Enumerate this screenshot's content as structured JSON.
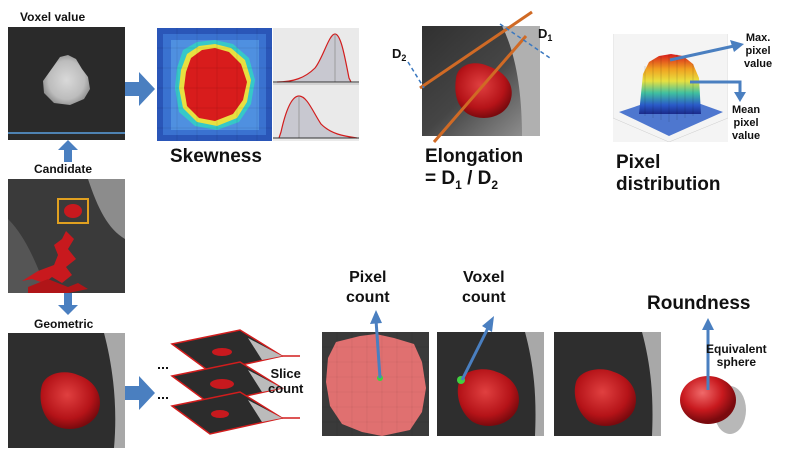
{
  "labels": {
    "voxel_value": "Voxel value",
    "candidate": "Candidate",
    "geometric": "Geometric",
    "skewness": "Skewness",
    "elongation_title": "Elongation",
    "elongation_eq": "= D",
    "elongation_sub1": "1",
    "elongation_div": " / D",
    "elongation_sub2": "2",
    "d1_main": "D",
    "d1_sub": "1",
    "d2_main": "D",
    "d2_sub": "2",
    "pixel_distribution_l1": "Pixel",
    "pixel_distribution_l2": "distribution",
    "max_pixel_l1": "Max.",
    "max_pixel_l2": "pixel",
    "max_pixel_l3": "value",
    "mean_pixel_l1": "Mean",
    "mean_pixel_l2": "pixel",
    "mean_pixel_l3": "value",
    "pixel_count_l1": "Pixel",
    "pixel_count_l2": "count",
    "voxel_count_l1": "Voxel",
    "voxel_count_l2": "count",
    "roundness": "Roundness",
    "slice_count_l1": "Slice",
    "slice_count_l2": "count",
    "equivalent_l1": "Equivalent",
    "equivalent_l2": "sphere"
  },
  "colors": {
    "arrow": "#4a7fc0",
    "tumor": "#c8191e",
    "ct_dark": "#2a2a2a",
    "ct_light": "#bdbdbd",
    "orange_line": "#d06a25",
    "dashed": "#3a78c0",
    "red_line": "#d21d1d"
  }
}
